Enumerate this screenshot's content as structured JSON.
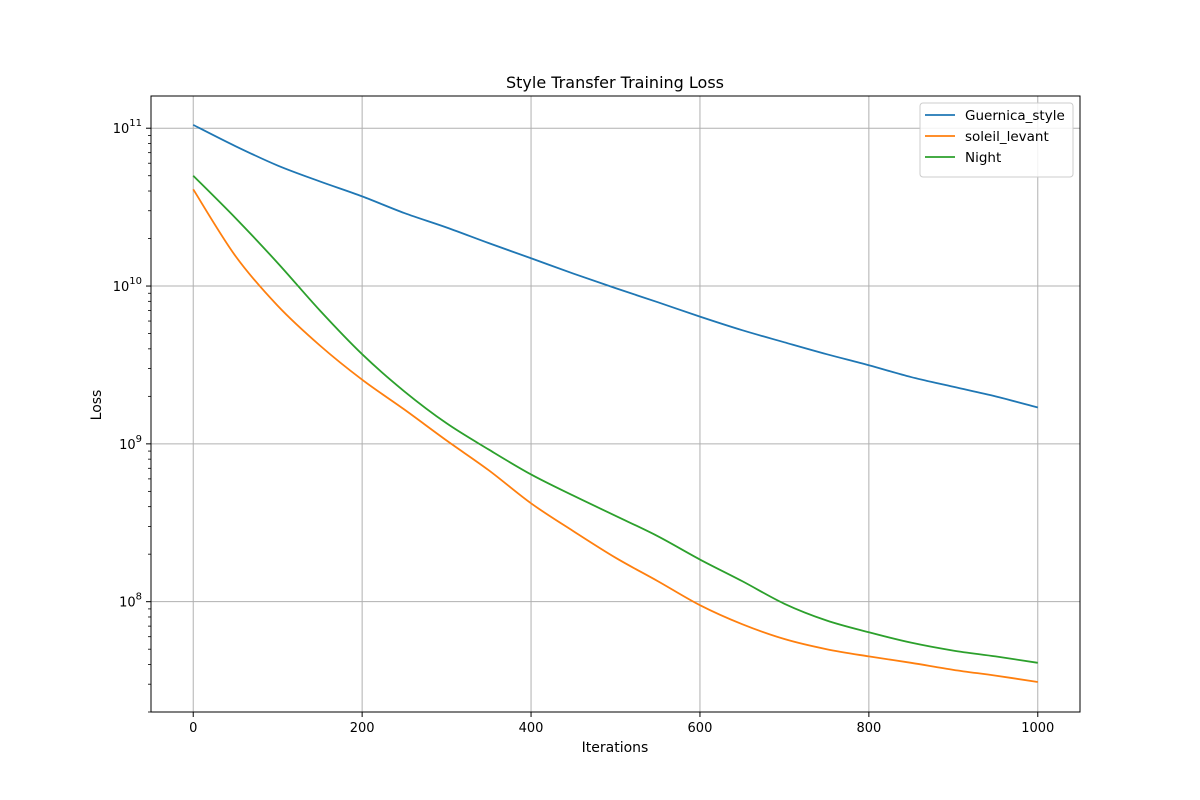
{
  "chart_data": {
    "type": "line",
    "title": "Style Transfer Training Loss",
    "xlabel": "Iterations",
    "ylabel": "Loss",
    "xlim": [
      -50,
      1050
    ],
    "ylim": [
      20000000,
      160000000000
    ],
    "yscale": "log",
    "grid": true,
    "legend_position": "top-right",
    "x_ticks": [
      0,
      200,
      400,
      600,
      800,
      1000
    ],
    "y_ticks": [
      {
        "value": 100000000,
        "base": "10",
        "exp": "8"
      },
      {
        "value": 1000000000,
        "base": "10",
        "exp": "9"
      },
      {
        "value": 10000000000,
        "base": "10",
        "exp": "10"
      },
      {
        "value": 100000000000,
        "base": "10",
        "exp": "11"
      }
    ],
    "x": [
      0,
      50,
      100,
      150,
      200,
      250,
      300,
      350,
      400,
      450,
      500,
      550,
      600,
      650,
      700,
      750,
      800,
      850,
      900,
      950,
      1000
    ],
    "series": [
      {
        "name": "Guernica_style",
        "color": "#1f77b4",
        "values": [
          105000000000,
          77000000000,
          58000000000,
          46000000000,
          37000000000,
          29000000000,
          23500000000,
          18700000000,
          15000000000,
          12000000000,
          9700000000,
          7900000000,
          6400000000,
          5250000000,
          4400000000,
          3700000000,
          3150000000,
          2650000000,
          2300000000,
          2000000000,
          1700000000
        ]
      },
      {
        "name": "soleil_levant",
        "color": "#ff7f0e",
        "values": [
          41000000000,
          15500000000,
          7500000000,
          4200000000,
          2550000000,
          1650000000,
          1050000000,
          680000000,
          420000000,
          280000000,
          190000000,
          135000000,
          95000000,
          72000000,
          58000000,
          50000000,
          45000000,
          41000000,
          37000000,
          34000000,
          31000000
        ]
      },
      {
        "name": "Night",
        "color": "#2ca02c",
        "values": [
          50000000000,
          27000000000,
          14000000000,
          7000000000,
          3700000000,
          2150000000,
          1350000000,
          920000000,
          640000000,
          470000000,
          350000000,
          260000000,
          185000000,
          135000000,
          97000000,
          76000000,
          64000000,
          55000000,
          49000000,
          45000000,
          41000000
        ]
      }
    ]
  }
}
